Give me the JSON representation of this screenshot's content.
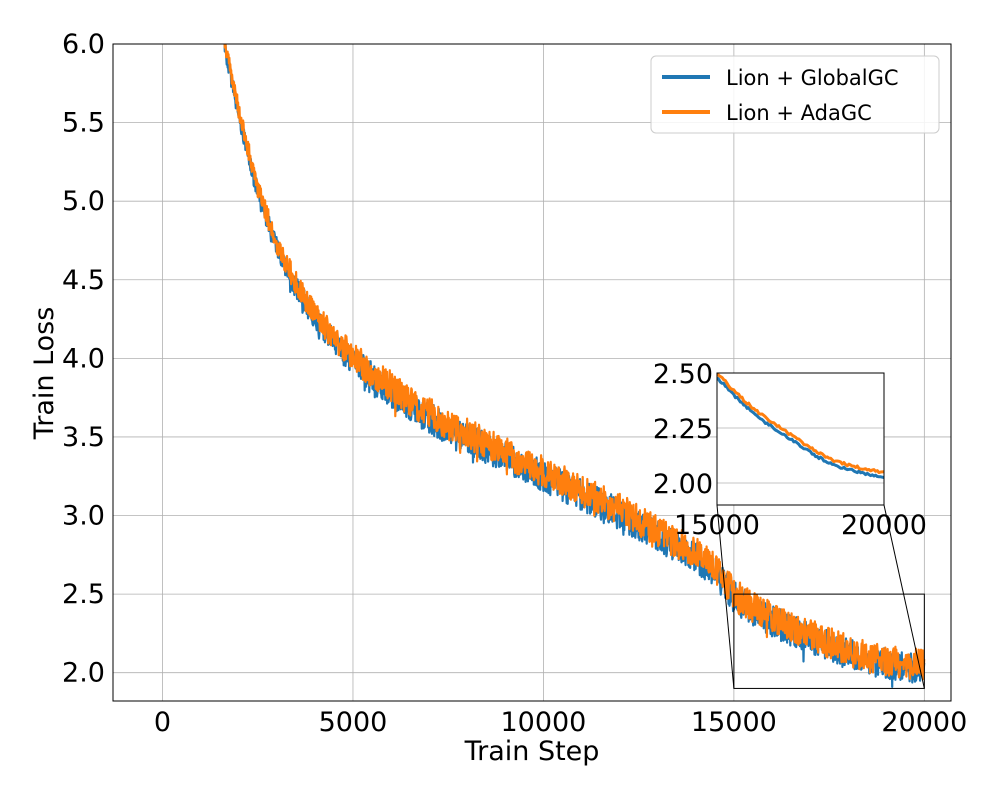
{
  "chart_data": {
    "type": "line",
    "title": "",
    "xlabel": "Train Step",
    "ylabel": "Train Loss",
    "xlim": [
      -1300,
      20700
    ],
    "ylim": [
      1.82,
      6.0
    ],
    "xticks": [
      0,
      5000,
      10000,
      15000,
      20000
    ],
    "xtick_labels": [
      "0",
      "5000",
      "10000",
      "15000",
      "20000"
    ],
    "yticks": [
      2.0,
      2.5,
      3.0,
      3.5,
      4.0,
      4.5,
      5.0,
      5.5,
      6.0
    ],
    "ytick_labels": [
      "2.0",
      "2.5",
      "3.0",
      "3.5",
      "4.0",
      "4.5",
      "5.0",
      "5.5",
      "6.0"
    ],
    "grid": true,
    "legend_position": "top-right",
    "x": [
      1600,
      2000,
      2500,
      3000,
      3500,
      4000,
      4500,
      5000,
      5500,
      6000,
      6500,
      7000,
      7500,
      8000,
      8500,
      9000,
      9500,
      10000,
      10500,
      11000,
      11500,
      12000,
      12500,
      13000,
      13500,
      14000,
      14500,
      15000,
      15500,
      16000,
      16500,
      17000,
      17500,
      18000,
      18500,
      19000,
      19500,
      20000
    ],
    "series": [
      {
        "name": "Lion + GlobalGC",
        "color": "#1f77b4",
        "values": [
          6.02,
          5.55,
          5.05,
          4.7,
          4.45,
          4.25,
          4.1,
          3.98,
          3.88,
          3.79,
          3.7,
          3.62,
          3.55,
          3.49,
          3.43,
          3.37,
          3.31,
          3.25,
          3.19,
          3.13,
          3.07,
          3.01,
          2.94,
          2.87,
          2.8,
          2.73,
          2.65,
          2.48,
          2.4,
          2.33,
          2.27,
          2.22,
          2.17,
          2.12,
          2.08,
          2.06,
          2.04,
          2.03
        ]
      },
      {
        "name": "Lion + AdaGC",
        "color": "#ff7f0e",
        "values": [
          6.05,
          5.58,
          5.08,
          4.73,
          4.48,
          4.28,
          4.13,
          4.01,
          3.91,
          3.82,
          3.73,
          3.65,
          3.58,
          3.52,
          3.46,
          3.4,
          3.34,
          3.28,
          3.22,
          3.16,
          3.1,
          3.04,
          2.97,
          2.9,
          2.83,
          2.76,
          2.68,
          2.5,
          2.42,
          2.35,
          2.29,
          2.24,
          2.19,
          2.14,
          2.1,
          2.08,
          2.06,
          2.05
        ]
      }
    ],
    "inset": {
      "xlim": [
        15000,
        20000
      ],
      "ylim": [
        1.9,
        2.5
      ],
      "xticks": [
        15000,
        20000
      ],
      "xtick_labels": [
        "15000",
        "20000"
      ],
      "yticks": [
        2.0,
        2.25,
        2.5
      ],
      "ytick_labels": [
        "2.00",
        "2.25",
        "2.50"
      ],
      "grid": true,
      "zoom_box_xlim": [
        15000,
        20000
      ],
      "zoom_box_ylim": [
        1.9,
        2.5
      ]
    }
  }
}
